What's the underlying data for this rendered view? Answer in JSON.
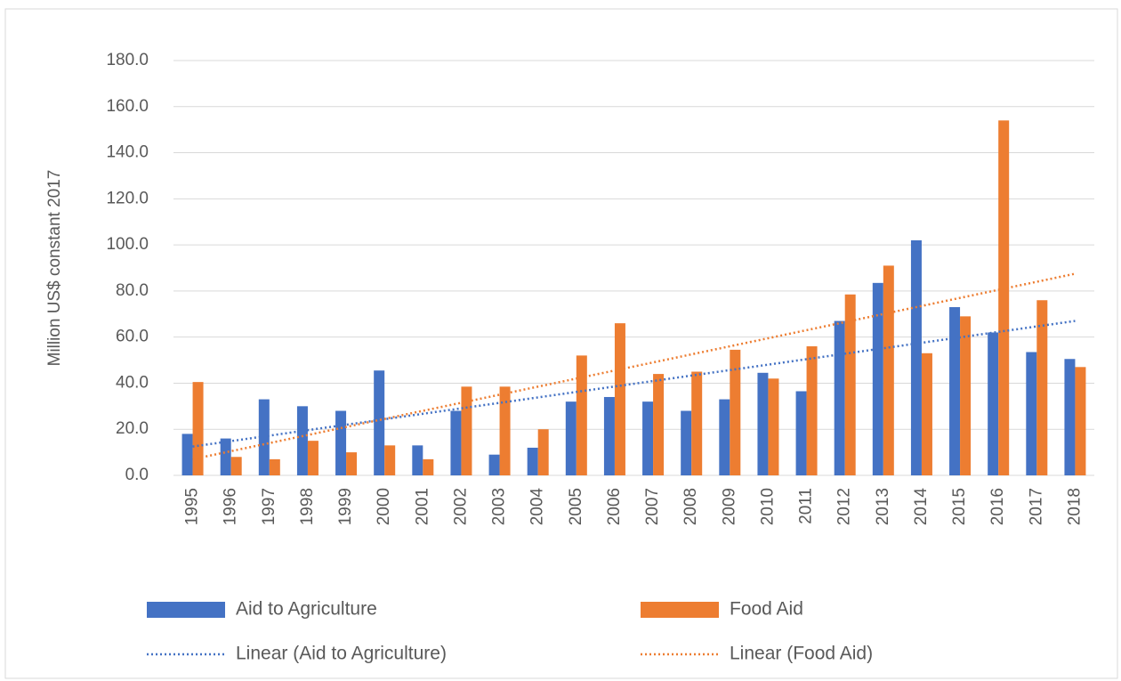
{
  "chart_data": {
    "type": "bar",
    "y_label": "Million US$ constant 2017",
    "categories": [
      "1995",
      "1996",
      "1997",
      "1998",
      "1999",
      "2000",
      "2001",
      "2002",
      "2003",
      "2004",
      "2005",
      "2006",
      "2007",
      "2008",
      "2009",
      "2010",
      "2011",
      "2012",
      "2013",
      "2014",
      "2015",
      "2016",
      "2017",
      "2018"
    ],
    "series": [
      {
        "name": "Aid to Agriculture",
        "color": "#4472c4",
        "values": [
          18,
          16,
          33,
          30,
          28,
          45.5,
          13,
          28,
          9,
          12,
          32,
          34,
          32,
          28,
          33,
          44.5,
          36.5,
          67,
          83.5,
          102,
          73,
          62,
          53.5,
          50.5
        ]
      },
      {
        "name": "Food Aid",
        "color": "#ed7d31",
        "values": [
          40.5,
          8,
          7,
          15,
          10,
          13,
          7,
          38.5,
          38.5,
          20,
          52,
          66,
          44,
          45,
          54.5,
          42,
          56,
          78.5,
          91,
          53,
          69,
          154,
          76,
          47
        ]
      }
    ],
    "trendlines": [
      {
        "name": "Linear (Aid to Agriculture)",
        "color": "#4472c4",
        "x": [
          "1995",
          "2018"
        ],
        "values": [
          12.5,
          67
        ]
      },
      {
        "name": "Linear (Food Aid)",
        "color": "#ed7d31",
        "x": [
          "1995",
          "2018"
        ],
        "values": [
          7,
          87.5
        ]
      }
    ],
    "ylim": [
      0,
      180
    ],
    "yticks": [
      {
        "value": 0,
        "label": "0.0"
      },
      {
        "value": 20,
        "label": "20.0"
      },
      {
        "value": 40,
        "label": "40.0"
      },
      {
        "value": 60,
        "label": "60.0"
      },
      {
        "value": 80,
        "label": "80.0"
      },
      {
        "value": 100,
        "label": "100.0"
      },
      {
        "value": 120,
        "label": "120.0"
      },
      {
        "value": 140,
        "label": "140.0"
      },
      {
        "value": 160,
        "label": "160.0"
      },
      {
        "value": 180,
        "label": "180.0"
      }
    ],
    "grid": true,
    "legend": "bottom"
  }
}
